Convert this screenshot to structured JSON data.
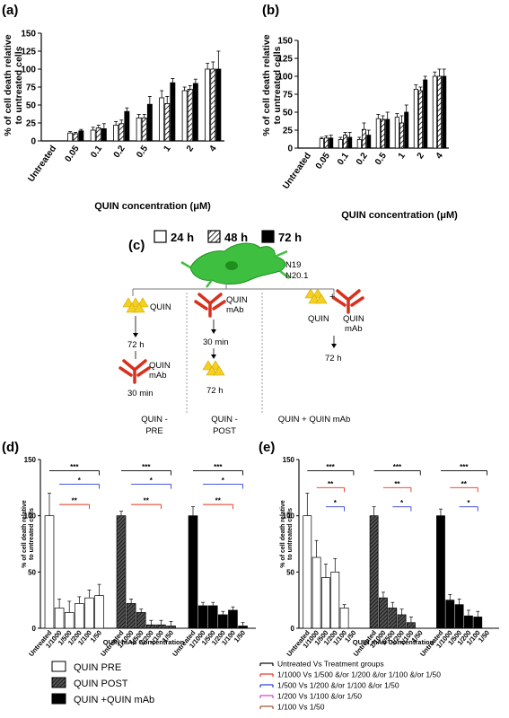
{
  "panel_labels": {
    "a": "(a)",
    "b": "(b)",
    "c": "(c)",
    "d": "(d)",
    "e": "(e)"
  },
  "ylabel_ab": [
    "% of cell death relative",
    "to untreated cells"
  ],
  "ylabel_de": [
    "% of cell death relative",
    "to untreated cells"
  ],
  "legend_top": [
    {
      "label": "24 h",
      "pattern": "white"
    },
    {
      "label": "48 h",
      "pattern": "hatch"
    },
    {
      "label": "72 h",
      "pattern": "black"
    }
  ],
  "schematic": {
    "cell_labels": [
      "N19",
      "N20.1"
    ],
    "col1": {
      "quin": "QUIN",
      "time1": "72 h",
      "mab": "QUIN",
      "mab2": "mAb",
      "time2": "30 min",
      "footer": [
        "QUIN -",
        "PRE"
      ]
    },
    "col2": {
      "mab": "QUIN",
      "mab2": "mAb",
      "time1": "30 min",
      "time2": "72 h",
      "footer": [
        "QUIN -",
        "POST"
      ]
    },
    "col3": {
      "quin": "QUIN",
      "mab": "QUIN",
      "mab2": "mAb",
      "plus": "+",
      "time": "72 h",
      "footer": "QUIN + QUIN mAb"
    }
  },
  "legend_bottom": [
    {
      "label": "QUIN PRE",
      "pattern": "white"
    },
    {
      "label": "QUIN POST",
      "pattern": "dense"
    },
    {
      "label": "QUIN +QUIN mAb",
      "pattern": "black"
    }
  ],
  "sig_legend": [
    {
      "label": "Untreated Vs Treatment groups",
      "color": "#000000"
    },
    {
      "label": "1/1000 Vs 1/500 &/or 1/200 &/or 1/100 &/or 1/50",
      "color": "#e8321e"
    },
    {
      "label": "1/500 Vs 1/200 &/or 1/100 &/or 1/50",
      "color": "#2b3bd6"
    },
    {
      "label": "1/200 Vs  1/100 &/or 1/50",
      "color": "#d53ad8"
    },
    {
      "label": "1/100 Vs 1/50",
      "color": "#a0522d"
    }
  ],
  "chart_data": [
    {
      "panel": "(a)",
      "type": "bar",
      "categories": [
        "Untreated",
        "0.05",
        "0.1",
        "0.2",
        "0.5",
        "1",
        "2",
        "4"
      ],
      "xlabel": "QUIN concentration (μM)",
      "ylim": [
        0,
        150
      ],
      "yticks": [
        0,
        25,
        50,
        75,
        100,
        125,
        150
      ],
      "series": [
        {
          "name": "24 h",
          "values": [
            0,
            11,
            15,
            22,
            32,
            60,
            70,
            100
          ],
          "errors": [
            0,
            2,
            4,
            5,
            5,
            10,
            5,
            8
          ]
        },
        {
          "name": "48 h",
          "values": [
            0,
            10,
            18,
            24,
            32,
            52,
            72,
            100
          ],
          "errors": [
            0,
            2,
            4,
            5,
            5,
            10,
            5,
            10
          ]
        },
        {
          "name": "72 h",
          "values": [
            0,
            14,
            17,
            41,
            51,
            81,
            80,
            100
          ],
          "errors": [
            0,
            2,
            7,
            5,
            11,
            6,
            6,
            25
          ]
        }
      ]
    },
    {
      "panel": "(b)",
      "type": "bar",
      "categories": [
        "Untreated",
        "0.05",
        "0.1",
        "0.2",
        "0.5",
        "1",
        "2",
        "4"
      ],
      "xlabel": "QUIN concentration (μM)",
      "ylim": [
        0,
        150
      ],
      "yticks": [
        0,
        25,
        50,
        75,
        100,
        125,
        150
      ],
      "series": [
        {
          "name": "24 h",
          "values": [
            0,
            13,
            12,
            12,
            41,
            43,
            82,
            100
          ],
          "errors": [
            0,
            2,
            3,
            3,
            6,
            5,
            6,
            6
          ]
        },
        {
          "name": "48 h",
          "values": [
            0,
            14,
            18,
            26,
            40,
            35,
            80,
            100
          ],
          "errors": [
            0,
            3,
            4,
            9,
            5,
            10,
            5,
            10
          ]
        },
        {
          "name": "72 h",
          "values": [
            0,
            14,
            15,
            18,
            40,
            50,
            95,
            100
          ],
          "errors": [
            0,
            4,
            7,
            7,
            10,
            10,
            5,
            10
          ]
        }
      ]
    },
    {
      "panel": "(d)",
      "type": "bar",
      "xlabel": "QUIN mAb Concentration",
      "ylim": [
        0,
        150
      ],
      "yticks": [
        0,
        50,
        100,
        150
      ],
      "categories": [
        "Untreated",
        "1/1000",
        "1/500",
        "1/200",
        "1/100",
        "1/50"
      ],
      "series": [
        {
          "name": "QUIN PRE",
          "values": [
            100,
            18,
            14,
            22,
            27,
            29
          ],
          "errors": [
            20,
            8,
            10,
            6,
            7,
            10
          ]
        },
        {
          "name": "QUIN POST",
          "values": [
            100,
            22,
            14,
            3,
            3,
            2
          ],
          "errors": [
            4,
            4,
            3,
            4,
            4,
            4
          ]
        },
        {
          "name": "QUIN +QUIN mAb",
          "values": [
            100,
            20,
            20,
            12,
            16,
            2
          ],
          "errors": [
            8,
            3,
            3,
            3,
            3,
            3
          ]
        }
      ]
    },
    {
      "panel": "(e)",
      "type": "bar",
      "xlabel": "QUIN mAb Concentration",
      "ylim": [
        0,
        150
      ],
      "yticks": [
        0,
        50,
        100,
        150
      ],
      "categories": [
        "Untreated",
        "1/1000",
        "1/500",
        "1/200",
        "1/100",
        "1/50"
      ],
      "series": [
        {
          "name": "QUIN PRE",
          "values": [
            100,
            63,
            45,
            50,
            18,
            0
          ],
          "errors": [
            20,
            15,
            12,
            12,
            3,
            0
          ]
        },
        {
          "name": "QUIN POST",
          "values": [
            100,
            27,
            18,
            12,
            5,
            0
          ],
          "errors": [
            8,
            5,
            5,
            5,
            5,
            0
          ]
        },
        {
          "name": "QUIN +QUIN mAb",
          "values": [
            100,
            25,
            21,
            11,
            10,
            0
          ],
          "errors": [
            6,
            5,
            5,
            5,
            5,
            0
          ]
        }
      ]
    }
  ]
}
